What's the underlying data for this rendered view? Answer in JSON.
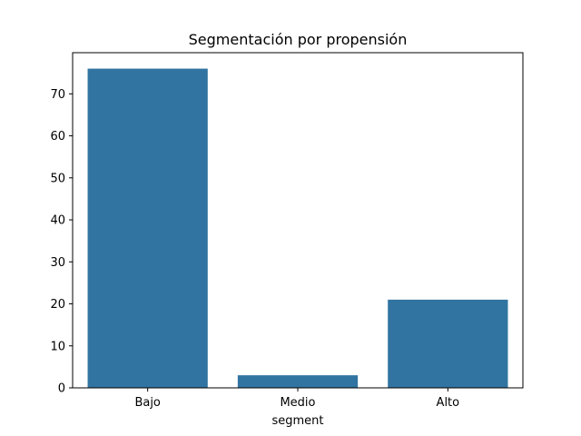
{
  "chart_data": {
    "type": "bar",
    "title": "Segmentación por propensión",
    "xlabel": "segment",
    "ylabel": "",
    "categories": [
      "Bajo",
      "Medio",
      "Alto"
    ],
    "values": [
      76,
      3,
      21
    ],
    "ylim": [
      0,
      79.8
    ],
    "yticks": [
      0,
      10,
      20,
      30,
      40,
      50,
      60,
      70
    ],
    "bar_color": "#3274a1",
    "grid": false,
    "legend": "none"
  }
}
